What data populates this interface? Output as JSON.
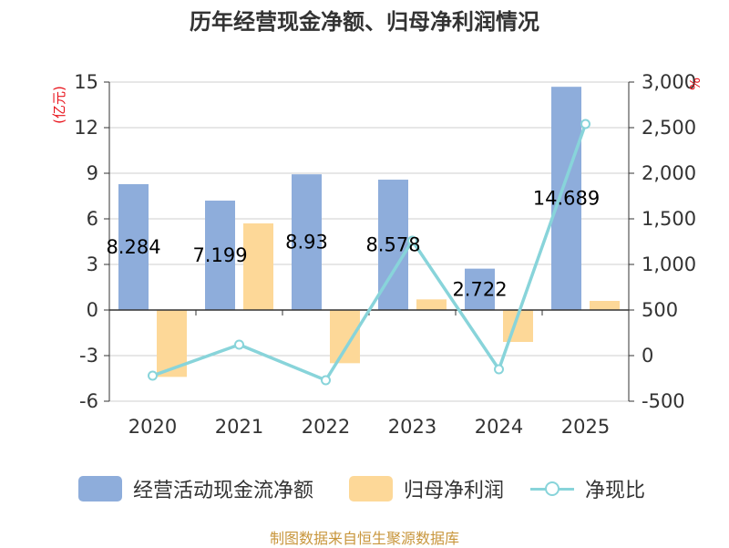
{
  "chart_data": {
    "type": "bar+line",
    "title": "历年经营现金净额、归母净利润情况",
    "categories": [
      "2020",
      "2021",
      "2022",
      "2023",
      "2024",
      "2025"
    ],
    "left_axis": {
      "unit": "(亿元)",
      "ylim": [
        -6,
        15
      ],
      "ticks": [
        "15",
        "12",
        "9",
        "6",
        "3",
        "0",
        "-3",
        "-6"
      ],
      "tick_values": [
        15,
        12,
        9,
        6,
        3,
        0,
        -3,
        -6
      ]
    },
    "right_axis": {
      "unit": "%",
      "ylim": [
        -500,
        3000
      ],
      "ticks": [
        "3,000",
        "2,500",
        "2,000",
        "1,500",
        "1,000",
        "500",
        "0",
        "-500"
      ],
      "tick_values": [
        3000,
        2500,
        2000,
        1500,
        1000,
        500,
        0,
        -500
      ]
    },
    "series": [
      {
        "name": "经营活动现金流净额",
        "type": "bar",
        "axis": "left",
        "color": "#8eaddb",
        "values": [
          8.284,
          7.199,
          8.93,
          8.578,
          2.722,
          14.689
        ],
        "data_labels": [
          "8.284",
          "7.199",
          "8.93",
          "8.578",
          "2.722",
          "14.689"
        ]
      },
      {
        "name": "归母净利润",
        "type": "bar",
        "axis": "left",
        "color": "#fdd898",
        "values": [
          -4.4,
          5.7,
          -3.5,
          0.7,
          -2.1,
          0.6
        ]
      },
      {
        "name": "净现比",
        "type": "line",
        "axis": "right",
        "color": "#88d4da",
        "values": [
          -220,
          120,
          -270,
          1260,
          -150,
          2540
        ]
      }
    ]
  },
  "source": "制图数据来自恒生聚源数据库"
}
